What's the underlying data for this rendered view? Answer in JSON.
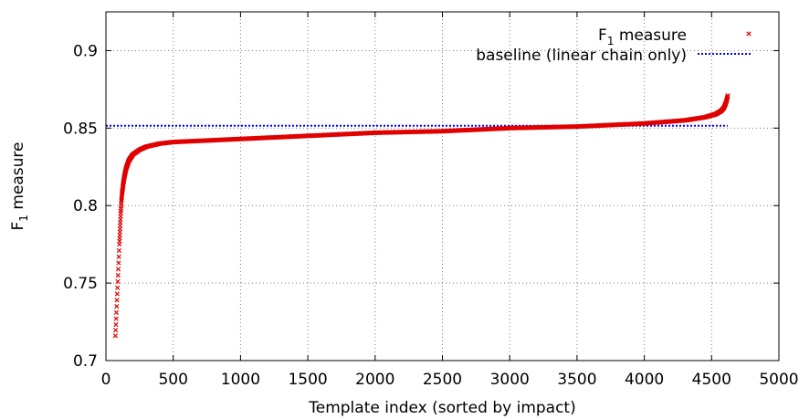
{
  "chart_data": {
    "type": "scatter",
    "xlabel": "Template index (sorted by impact)",
    "ylabel": {
      "base": "F",
      "sub": "1",
      "rest": " measure"
    },
    "xlim": [
      0,
      5000
    ],
    "ylim": [
      0.7,
      0.925
    ],
    "xticks": [
      0,
      500,
      1000,
      1500,
      2000,
      2500,
      3000,
      3500,
      4000,
      4500,
      5000
    ],
    "yticks": [
      "0.7",
      "0.75",
      "0.8",
      "0.85",
      "0.9"
    ],
    "grid": true,
    "legend_position": "top-right",
    "series": [
      {
        "name": {
          "base": "F",
          "sub": "1",
          "rest": " measure"
        },
        "marker": "x",
        "color": "#e00000",
        "x_range": [
          70,
          4620
        ],
        "points": [
          [
            70,
            0.716
          ],
          [
            75,
            0.725
          ],
          [
            80,
            0.735
          ],
          [
            85,
            0.745
          ],
          [
            90,
            0.755
          ],
          [
            95,
            0.765
          ],
          [
            100,
            0.775
          ],
          [
            105,
            0.785
          ],
          [
            110,
            0.795
          ],
          [
            115,
            0.803
          ],
          [
            120,
            0.808
          ],
          [
            130,
            0.815
          ],
          [
            140,
            0.82
          ],
          [
            150,
            0.824
          ],
          [
            170,
            0.829
          ],
          [
            200,
            0.833
          ],
          [
            250,
            0.836
          ],
          [
            300,
            0.838
          ],
          [
            400,
            0.84
          ],
          [
            500,
            0.841
          ],
          [
            750,
            0.842
          ],
          [
            1000,
            0.843
          ],
          [
            1500,
            0.845
          ],
          [
            2000,
            0.847
          ],
          [
            2500,
            0.848
          ],
          [
            3000,
            0.85
          ],
          [
            3500,
            0.851
          ],
          [
            4000,
            0.853
          ],
          [
            4300,
            0.855
          ],
          [
            4450,
            0.857
          ],
          [
            4530,
            0.859
          ],
          [
            4570,
            0.861
          ],
          [
            4590,
            0.863
          ],
          [
            4605,
            0.866
          ],
          [
            4615,
            0.869
          ],
          [
            4620,
            0.871
          ]
        ]
      },
      {
        "name": "baseline (linear chain only)",
        "type": "line",
        "style": "dotted",
        "color": "#0000ff",
        "x_range": [
          0,
          4620
        ],
        "y": 0.8515
      }
    ]
  }
}
